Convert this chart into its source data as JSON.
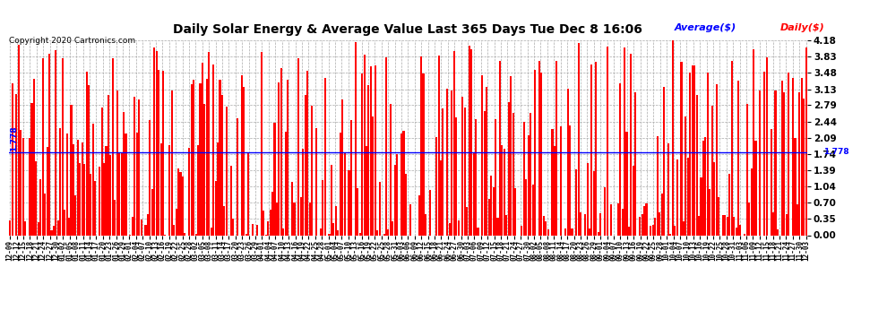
{
  "title": "Daily Solar Energy & Average Value Last 365 Days Tue Dec 8 16:06",
  "copyright": "Copyright 2020 Cartronics.com",
  "average_label": "Average($)",
  "daily_label": "Daily($)",
  "average_value": 1.778,
  "ylim": [
    0.0,
    4.18
  ],
  "yticks": [
    0.0,
    0.35,
    0.7,
    1.04,
    1.39,
    1.74,
    2.09,
    2.44,
    2.79,
    3.13,
    3.48,
    3.83,
    4.18
  ],
  "bar_color": "#FF0000",
  "avg_line_color": "#0000FF",
  "background_color": "#FFFFFF",
  "grid_color": "#AAAAAA",
  "title_color": "#000000",
  "copyright_color": "#000000",
  "avg_label_color": "#0000FF",
  "daily_label_color": "#FF0000",
  "x_labels": [
    "12-09",
    "12-12",
    "12-15",
    "12-18",
    "12-21",
    "12-24",
    "12-27",
    "12-30",
    "01-02",
    "01-05",
    "01-08",
    "01-11",
    "01-14",
    "01-17",
    "01-20",
    "01-23",
    "01-26",
    "01-29",
    "02-01",
    "02-04",
    "02-07",
    "02-10",
    "02-13",
    "02-16",
    "02-19",
    "02-22",
    "02-25",
    "02-28",
    "03-02",
    "03-05",
    "03-08",
    "03-11",
    "03-14",
    "03-17",
    "03-20",
    "03-23",
    "03-26",
    "03-29",
    "04-01",
    "04-04",
    "04-07",
    "04-10",
    "04-13",
    "04-16",
    "04-19",
    "04-22",
    "04-25",
    "04-28",
    "05-01",
    "05-04",
    "05-07",
    "05-10",
    "05-13",
    "05-16",
    "05-19",
    "05-22",
    "05-25",
    "05-28",
    "05-31",
    "06-03",
    "06-06",
    "06-09",
    "06-12",
    "06-15",
    "06-18",
    "06-21",
    "06-24",
    "06-27",
    "06-30",
    "07-03",
    "07-06",
    "07-09",
    "07-12",
    "07-15",
    "07-18",
    "07-21",
    "07-24",
    "07-27",
    "07-30",
    "08-02",
    "08-05",
    "08-08",
    "08-11",
    "08-14",
    "08-17",
    "08-20",
    "08-23",
    "08-26",
    "08-29",
    "09-01",
    "09-04",
    "09-07",
    "09-10",
    "09-13",
    "09-16",
    "09-19",
    "09-22",
    "09-25",
    "09-28",
    "10-01",
    "10-04",
    "10-07",
    "10-10",
    "10-13",
    "10-16",
    "10-19",
    "10-22",
    "10-25",
    "10-28",
    "10-31",
    "11-03",
    "11-06",
    "11-09",
    "11-12",
    "11-15",
    "11-18",
    "11-21",
    "11-24",
    "11-27",
    "11-30",
    "12-03"
  ],
  "n_bars": 365
}
